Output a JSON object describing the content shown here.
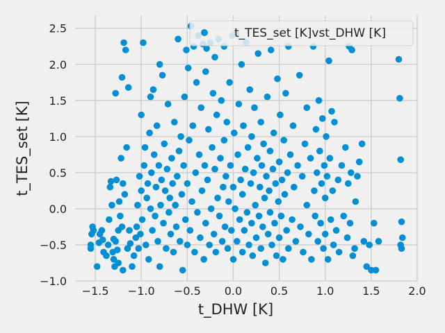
{
  "chart_data": {
    "type": "scatter",
    "title": "",
    "xlabel": "t_DHW [K]",
    "ylabel": "t_TES_set [K]",
    "xlim": [
      -1.72,
      2.0
    ],
    "ylim": [
      -1.0,
      2.68
    ],
    "x_ticks": [
      -1.5,
      -1.0,
      -0.5,
      0.0,
      0.5,
      1.0,
      1.5,
      2.0
    ],
    "x_tick_labels": [
      "−1.5",
      "−1.0",
      "−0.5",
      "0.0",
      "0.5",
      "1.0",
      "1.5",
      "2.0"
    ],
    "y_ticks": [
      -1.0,
      -0.5,
      0.0,
      0.5,
      1.0,
      1.5,
      2.0,
      2.5
    ],
    "y_tick_labels": [
      "−1.0",
      "−0.5",
      "0.0",
      "0.5",
      "1.0",
      "1.5",
      "2.0",
      "2.5"
    ],
    "grid": true,
    "legend_position": "top-right",
    "series": [
      {
        "name": "t_TES_set [K]vst_DHW [K]",
        "color": "#008fd5",
        "points": [
          [
            -1.55,
            -0.55
          ],
          [
            -1.55,
            -0.5
          ],
          [
            -1.54,
            -0.35
          ],
          [
            -1.53,
            -0.25
          ],
          [
            -1.52,
            -0.3
          ],
          [
            -1.48,
            -0.8
          ],
          [
            -1.46,
            -0.47
          ],
          [
            -1.45,
            -0.35
          ],
          [
            -1.43,
            -0.3
          ],
          [
            -1.42,
            -0.43
          ],
          [
            -1.41,
            -0.6
          ],
          [
            -1.38,
            -0.65
          ],
          [
            -1.36,
            -0.5
          ],
          [
            -1.35,
            -0.15
          ],
          [
            -1.34,
            0.3
          ],
          [
            -1.33,
            0.38
          ],
          [
            -1.32,
            0.05
          ],
          [
            -1.31,
            -0.6
          ],
          [
            -1.3,
            -0.42
          ],
          [
            -1.3,
            -0.7
          ],
          [
            -1.29,
            -0.8
          ],
          [
            -1.28,
            1.6
          ],
          [
            -1.28,
            -0.45
          ],
          [
            -1.27,
            0.4
          ],
          [
            -1.26,
            -0.57
          ],
          [
            -1.25,
            -0.3
          ],
          [
            -1.25,
            -0.75
          ],
          [
            -1.24,
            0.1
          ],
          [
            -1.23,
            -0.1
          ],
          [
            -1.22,
            0.7
          ],
          [
            -1.21,
            1.82
          ],
          [
            -1.21,
            -0.25
          ],
          [
            -1.2,
            0.35
          ],
          [
            -1.2,
            -0.85
          ],
          [
            -1.19,
            2.3
          ],
          [
            -1.18,
            0.2
          ],
          [
            -1.17,
            2.2
          ],
          [
            -1.16,
            0.85
          ],
          [
            -1.15,
            -0.55
          ],
          [
            -1.14,
            1.68
          ],
          [
            -1.13,
            -0.3
          ],
          [
            -1.12,
            -0.48
          ],
          [
            -1.1,
            -0.8
          ],
          [
            -1.08,
            -0.65
          ],
          [
            -1.06,
            -0.4
          ],
          [
            -1.05,
            -0.25
          ],
          [
            -1.04,
            0.05
          ],
          [
            -1.03,
            -0.55
          ],
          [
            -1.02,
            0.45
          ],
          [
            -1.01,
            -0.35
          ],
          [
            -1.0,
            0.25
          ],
          [
            -1.0,
            1.3
          ],
          [
            -0.99,
            -0.15
          ],
          [
            -0.98,
            2.3
          ],
          [
            -0.97,
            0.6
          ],
          [
            -0.96,
            0.85
          ],
          [
            -0.95,
            -0.5
          ],
          [
            -0.94,
            0.15
          ],
          [
            -0.93,
            0.35
          ],
          [
            -0.92,
            -0.7
          ],
          [
            -0.91,
            1.05
          ],
          [
            -0.9,
            1.55
          ],
          [
            -0.9,
            0.0
          ],
          [
            -0.89,
            0.5
          ],
          [
            -0.88,
            -0.3
          ],
          [
            -0.87,
            1.65
          ],
          [
            -0.86,
            0.75
          ],
          [
            -0.85,
            -0.1
          ],
          [
            -0.84,
            0.3
          ],
          [
            -0.83,
            1.15
          ],
          [
            -0.82,
            -0.45
          ],
          [
            -0.81,
            0.6
          ],
          [
            -0.8,
            2.0
          ],
          [
            -0.8,
            -0.8
          ],
          [
            -0.79,
            0.05
          ],
          [
            -0.78,
            0.4
          ],
          [
            -0.77,
            1.85
          ],
          [
            -0.76,
            -0.2
          ],
          [
            -0.75,
            0.9
          ],
          [
            -0.74,
            0.25
          ],
          [
            -0.73,
            -0.55
          ],
          [
            -0.72,
            0.55
          ],
          [
            -0.71,
            1.45
          ],
          [
            -0.7,
            -0.05
          ],
          [
            -0.69,
            0.15
          ],
          [
            -0.68,
            -0.35
          ],
          [
            -0.67,
            0.7
          ],
          [
            -0.66,
            0.35
          ],
          [
            -0.65,
            -0.6
          ],
          [
            -0.64,
            1.2
          ],
          [
            -0.63,
            0.05
          ],
          [
            -0.62,
            -0.25
          ],
          [
            -0.61,
            0.45
          ],
          [
            -0.6,
            2.35
          ],
          [
            -0.59,
            0.8
          ],
          [
            -0.58,
            -0.45
          ],
          [
            -0.57,
            1.0
          ],
          [
            -0.56,
            0.2
          ],
          [
            -0.55,
            -0.85
          ],
          [
            -0.54,
            0.6
          ],
          [
            -0.53,
            1.55
          ],
          [
            -0.52,
            -0.15
          ],
          [
            -0.51,
            2.2
          ],
          [
            -0.5,
            0.35
          ],
          [
            -0.5,
            -0.5
          ],
          [
            -0.49,
            1.95
          ],
          [
            -0.48,
            0.95
          ],
          [
            -0.47,
            -0.3
          ],
          [
            -0.46,
            2.53
          ],
          [
            -0.45,
            0.1
          ],
          [
            -0.44,
            1.15
          ],
          [
            -0.43,
            2.25
          ],
          [
            -0.42,
            -0.6
          ],
          [
            -0.41,
            0.5
          ],
          [
            -0.4,
            1.75
          ],
          [
            -0.39,
            -0.05
          ],
          [
            -0.38,
            2.4
          ],
          [
            -0.37,
            0.75
          ],
          [
            -0.36,
            -0.4
          ],
          [
            -0.35,
            1.4
          ],
          [
            -0.34,
            0.25
          ],
          [
            -0.33,
            2.28
          ],
          [
            -0.32,
            -0.7
          ],
          [
            -0.31,
            0.6
          ],
          [
            -0.3,
            1.9
          ],
          [
            -0.3,
            -0.2
          ],
          [
            -0.29,
            2.22
          ],
          [
            -0.28,
            0.4
          ],
          [
            -0.27,
            1.1
          ],
          [
            -0.26,
            -0.5
          ],
          [
            -0.25,
            2.3
          ],
          [
            -0.24,
            0.0
          ],
          [
            -0.23,
            0.85
          ],
          [
            -0.22,
            1.6
          ],
          [
            -0.21,
            -0.35
          ],
          [
            -0.2,
            2.1
          ],
          [
            -0.2,
            0.55
          ],
          [
            -0.19,
            -0.6
          ],
          [
            -0.18,
            1.3
          ],
          [
            -0.17,
            0.15
          ],
          [
            -0.16,
            2.35
          ],
          [
            -0.15,
            -0.1
          ],
          [
            -0.14,
            0.7
          ],
          [
            -0.13,
            1.5
          ],
          [
            -0.12,
            -0.45
          ],
          [
            -0.11,
            0.3
          ],
          [
            -0.1,
            2.25
          ],
          [
            -0.1,
            0.95
          ],
          [
            -0.09,
            -0.25
          ],
          [
            -0.08,
            0.45
          ],
          [
            -0.07,
            1.2
          ],
          [
            -0.06,
            -0.55
          ],
          [
            -0.05,
            0.1
          ],
          [
            -0.04,
            1.75
          ],
          [
            -0.03,
            0.6
          ],
          [
            -0.02,
            -0.3
          ],
          [
            -0.01,
            2.4
          ],
          [
            0.0,
            0.3
          ],
          [
            0.0,
            -0.7
          ],
          [
            0.01,
            1.05
          ],
          [
            0.02,
            0.0
          ],
          [
            0.03,
            2.42
          ],
          [
            0.04,
            -0.45
          ],
          [
            0.05,
            0.75
          ],
          [
            0.06,
            1.45
          ],
          [
            0.07,
            -0.15
          ],
          [
            0.08,
            0.4
          ],
          [
            0.09,
            2.0
          ],
          [
            0.1,
            -0.6
          ],
          [
            0.1,
            0.2
          ],
          [
            0.11,
            1.15
          ],
          [
            0.12,
            -0.3
          ],
          [
            0.13,
            0.55
          ],
          [
            0.14,
            2.3
          ],
          [
            0.15,
            -0.05
          ],
          [
            0.16,
            0.85
          ],
          [
            0.17,
            -0.5
          ],
          [
            0.18,
            1.65
          ],
          [
            0.19,
            0.35
          ],
          [
            0.2,
            -0.2
          ],
          [
            0.2,
            1.0
          ],
          [
            0.21,
            -0.65
          ],
          [
            0.22,
            0.5
          ],
          [
            0.23,
            1.4
          ],
          [
            0.24,
            0.05
          ],
          [
            0.25,
            -0.4
          ],
          [
            0.26,
            0.7
          ],
          [
            0.27,
            2.15
          ],
          [
            0.28,
            -0.1
          ],
          [
            0.29,
            0.3
          ],
          [
            0.3,
            1.2
          ],
          [
            0.3,
            -0.55
          ],
          [
            0.31,
            0.6
          ],
          [
            0.32,
            -0.25
          ],
          [
            0.33,
            0.9
          ],
          [
            0.34,
            0.15
          ],
          [
            0.35,
            -0.75
          ],
          [
            0.36,
            0.45
          ],
          [
            0.37,
            1.55
          ],
          [
            0.38,
            -0.35
          ],
          [
            0.39,
            0.25
          ],
          [
            0.4,
            0.8
          ],
          [
            0.4,
            -0.05
          ],
          [
            0.41,
            2.2
          ],
          [
            0.42,
            -0.5
          ],
          [
            0.43,
            0.55
          ],
          [
            0.44,
            1.05
          ],
          [
            0.45,
            -0.2
          ],
          [
            0.46,
            0.35
          ],
          [
            0.47,
            -0.65
          ],
          [
            0.48,
            1.8
          ],
          [
            0.49,
            0.1
          ],
          [
            0.5,
            -0.4
          ],
          [
            0.5,
            0.65
          ],
          [
            0.51,
            1.3
          ],
          [
            0.52,
            -0.1
          ],
          [
            0.53,
            0.4
          ],
          [
            0.54,
            -0.7
          ],
          [
            0.55,
            0.95
          ],
          [
            0.56,
            0.2
          ],
          [
            0.57,
            1.6
          ],
          [
            0.58,
            -0.3
          ],
          [
            0.59,
            0.5
          ],
          [
            0.6,
            2.25
          ],
          [
            0.6,
            -0.55
          ],
          [
            0.62,
            0.75
          ],
          [
            0.64,
            -0.15
          ],
          [
            0.65,
            1.15
          ],
          [
            0.66,
            0.3
          ],
          [
            0.68,
            -0.45
          ],
          [
            0.7,
            0.6
          ],
          [
            0.72,
            1.85
          ],
          [
            0.73,
            -0.25
          ],
          [
            0.75,
            0.45
          ],
          [
            0.76,
            -0.6
          ],
          [
            0.78,
            0.9
          ],
          [
            0.8,
            0.05
          ],
          [
            0.8,
            1.4
          ],
          [
            0.82,
            -0.35
          ],
          [
            0.84,
            0.7
          ],
          [
            0.85,
            -0.7
          ],
          [
            0.87,
            2.25
          ],
          [
            0.88,
            0.25
          ],
          [
            0.89,
            -0.1
          ],
          [
            0.9,
            1.1
          ],
          [
            0.91,
            0.5
          ],
          [
            0.92,
            -0.45
          ],
          [
            0.93,
            1.5
          ],
          [
            0.94,
            0.8
          ],
          [
            0.95,
            -0.2
          ],
          [
            0.96,
            0.35
          ],
          [
            0.97,
            1.25
          ],
          [
            0.98,
            -0.55
          ],
          [
            0.99,
            0.6
          ],
          [
            1.0,
            0.15
          ],
          [
            1.0,
            -0.35
          ],
          [
            1.01,
            1.0
          ],
          [
            1.02,
            0.45
          ],
          [
            1.03,
            -0.7
          ],
          [
            1.04,
            2.05
          ],
          [
            1.05,
            0.7
          ],
          [
            1.06,
            -0.15
          ],
          [
            1.07,
            1.35
          ],
          [
            1.08,
            0.25
          ],
          [
            1.09,
            -0.5
          ],
          [
            1.1,
            1.2
          ],
          [
            1.12,
            -0.3
          ],
          [
            1.14,
            0.4
          ],
          [
            1.15,
            -0.6
          ],
          [
            1.18,
            0.6
          ],
          [
            1.2,
            -0.1
          ],
          [
            1.22,
            0.85
          ],
          [
            1.24,
            -0.4
          ],
          [
            1.25,
            0.35
          ],
          [
            1.26,
            2.25
          ],
          [
            1.27,
            -0.2
          ],
          [
            1.28,
            0.5
          ],
          [
            1.29,
            2.2
          ],
          [
            1.3,
            -0.65
          ],
          [
            1.32,
            -0.55
          ],
          [
            1.33,
            0.1
          ],
          [
            1.35,
            0.45
          ],
          [
            1.37,
            0.65
          ],
          [
            1.4,
            0.9
          ],
          [
            1.42,
            -0.45
          ],
          [
            1.45,
            -0.8
          ],
          [
            1.48,
            -0.5
          ],
          [
            1.5,
            -0.85
          ],
          [
            1.53,
            -0.2
          ],
          [
            1.55,
            -0.85
          ],
          [
            1.58,
            -0.45
          ],
          [
            1.8,
            2.07
          ],
          [
            1.81,
            1.53
          ],
          [
            1.82,
            0.68
          ],
          [
            1.82,
            -0.5
          ],
          [
            1.83,
            -0.18
          ],
          [
            1.84,
            -0.4
          ],
          [
            1.83,
            -0.55
          ]
        ]
      }
    ]
  }
}
